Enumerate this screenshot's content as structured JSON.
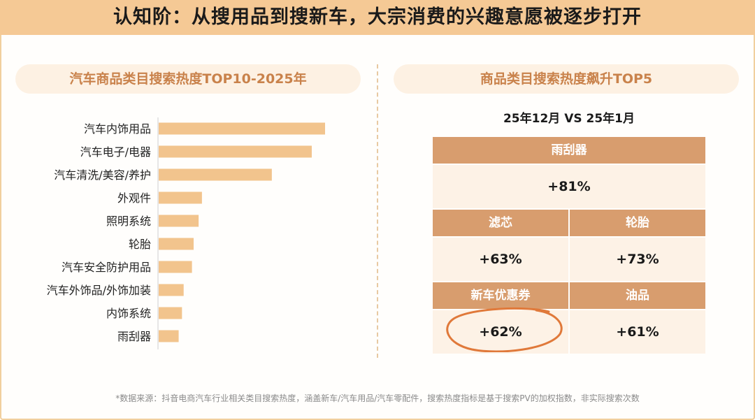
{
  "page": {
    "title": "认知阶：从搜用品到搜新车，大宗消费的兴趣意愿被逐步打开",
    "footnote": "*数据来源：抖音电商汽车行业相关类目搜索热度，涵盖新车/汽车用品/汽车零配件，搜索热度指标是基于搜索PV的加权指数，非实际搜索次数"
  },
  "colors": {
    "banner": "#f5c995",
    "bar": "#f2c48d",
    "pill_text": "#c9824b",
    "header_cell": "#d89d6e",
    "value_cell": "#fdf2e6",
    "circle": "#e0793a"
  },
  "chart_data": {
    "type": "bar",
    "orientation": "horizontal",
    "title": "汽车商品类目搜索热度TOP10-2025年",
    "categories": [
      "汽车内饰用品",
      "汽车电子/电器",
      "汽车清洗/美容/养护",
      "外观件",
      "照明系统",
      "轮胎",
      "汽车安全防护用品",
      "汽车外饰品/外饰加装",
      "内饰系统",
      "雨刮器"
    ],
    "values": [
      100,
      92,
      68,
      26,
      24,
      21,
      20,
      15,
      14,
      12
    ],
    "xlabel": "",
    "ylabel": "",
    "xlim": [
      0,
      100
    ],
    "grid": false,
    "legend": false
  },
  "right_panel": {
    "title": "商品类目搜索热度飙升TOP5",
    "comparison": "25年12月 VS 25年1月",
    "items": [
      {
        "name": "雨刮器",
        "change": "+81%"
      },
      {
        "name": "滤芯",
        "change": "+63%"
      },
      {
        "name": "轮胎",
        "change": "+73%"
      },
      {
        "name": "新车优惠券",
        "change": "+62%"
      },
      {
        "name": "油品",
        "change": "+61%"
      }
    ]
  }
}
